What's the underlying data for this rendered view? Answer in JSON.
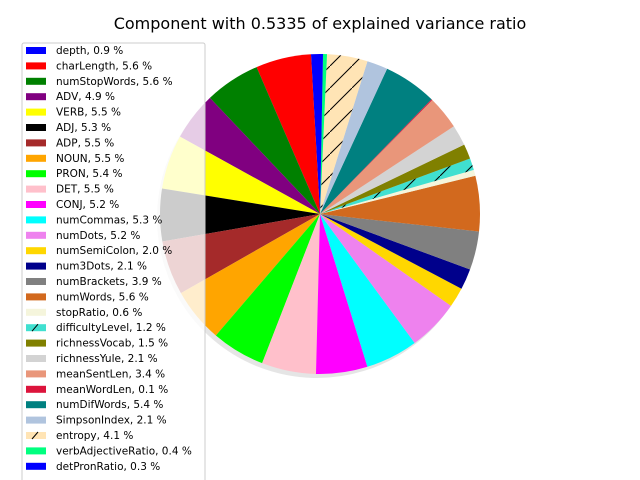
{
  "chart_data": {
    "type": "pie",
    "title": "Component with 0.5335 of explained variance ratio",
    "legend_position": "left",
    "start_angle_deg": 90,
    "direction": "counterclockwise",
    "slices": [
      {
        "label": "depth, 0.9 %",
        "name": "depth",
        "value": 0.9,
        "color": "#0000ff",
        "hatch": false
      },
      {
        "label": "charLength, 5.6 %",
        "name": "charLength",
        "value": 5.6,
        "color": "#ff0000",
        "hatch": false
      },
      {
        "label": "numStopWords, 5.6 %",
        "name": "numStopWords",
        "value": 5.6,
        "color": "#008000",
        "hatch": false
      },
      {
        "label": "ADV, 4.9 %",
        "name": "ADV",
        "value": 4.9,
        "color": "#800080",
        "hatch": false
      },
      {
        "label": "VERB, 5.5 %",
        "name": "VERB",
        "value": 5.5,
        "color": "#ffff00",
        "hatch": false
      },
      {
        "label": "ADJ, 5.3 %",
        "name": "ADJ",
        "value": 5.3,
        "color": "#000000",
        "hatch": false
      },
      {
        "label": "ADP, 5.5 %",
        "name": "ADP",
        "value": 5.5,
        "color": "#a52a2a",
        "hatch": false
      },
      {
        "label": "NOUN, 5.5 %",
        "name": "NOUN",
        "value": 5.5,
        "color": "#ffa500",
        "hatch": false
      },
      {
        "label": "PRON, 5.4 %",
        "name": "PRON",
        "value": 5.4,
        "color": "#00ff00",
        "hatch": false
      },
      {
        "label": "DET, 5.5 %",
        "name": "DET",
        "value": 5.5,
        "color": "#ffc0cb",
        "hatch": false
      },
      {
        "label": "CONJ, 5.2 %",
        "name": "CONJ",
        "value": 5.2,
        "color": "#ff00ff",
        "hatch": false
      },
      {
        "label": "numCommas, 5.3 %",
        "name": "numCommas",
        "value": 5.3,
        "color": "#00ffff",
        "hatch": false
      },
      {
        "label": "numDots, 5.2 %",
        "name": "numDots",
        "value": 5.2,
        "color": "#ee82ee",
        "hatch": false
      },
      {
        "label": "numSemiColon, 2.0 %",
        "name": "numSemiColon",
        "value": 2.0,
        "color": "#ffd700",
        "hatch": false
      },
      {
        "label": "num3Dots, 2.1 %",
        "name": "num3Dots",
        "value": 2.1,
        "color": "#00008b",
        "hatch": false
      },
      {
        "label": "numBrackets, 3.9 %",
        "name": "numBrackets",
        "value": 3.9,
        "color": "#808080",
        "hatch": false
      },
      {
        "label": "numWords, 5.6 %",
        "name": "numWords",
        "value": 5.6,
        "color": "#d2691e",
        "hatch": false
      },
      {
        "label": "stopRatio, 0.6 %",
        "name": "stopRatio",
        "value": 0.6,
        "color": "#f5f5dc",
        "hatch": false
      },
      {
        "label": "difficultyLevel, 1.2 %",
        "name": "difficultyLevel",
        "value": 1.2,
        "color": "#40e0d0",
        "hatch": true
      },
      {
        "label": "richnessVocab, 1.5 %",
        "name": "richnessVocab",
        "value": 1.5,
        "color": "#808000",
        "hatch": false
      },
      {
        "label": "richnessYule, 2.1 %",
        "name": "richnessYule",
        "value": 2.1,
        "color": "#d3d3d3",
        "hatch": false
      },
      {
        "label": "meanSentLen, 3.4 %",
        "name": "meanSentLen",
        "value": 3.4,
        "color": "#e9967a",
        "hatch": false
      },
      {
        "label": "meanWordLen, 0.1 %",
        "name": "meanWordLen",
        "value": 0.1,
        "color": "#dc143c",
        "hatch": false
      },
      {
        "label": "numDifWords, 5.4 %",
        "name": "numDifWords",
        "value": 5.4,
        "color": "#008080",
        "hatch": false
      },
      {
        "label": "SimpsonIndex, 2.1 %",
        "name": "SimpsonIndex",
        "value": 2.1,
        "color": "#b0c4de",
        "hatch": false
      },
      {
        "label": "entropy, 4.1 %",
        "name": "entropy",
        "value": 4.1,
        "color": "#ffe4b5",
        "hatch": true
      },
      {
        "label": "verbAdjectiveRatio, 0.4 %",
        "name": "verbAdjectiveRatio",
        "value": 0.4,
        "color": "#00ff7f",
        "hatch": false
      },
      {
        "label": "detPronRatio, 0.3 %",
        "name": "detPronRatio",
        "value": 0.3,
        "color": "#0000ff",
        "hatch": false
      }
    ]
  }
}
